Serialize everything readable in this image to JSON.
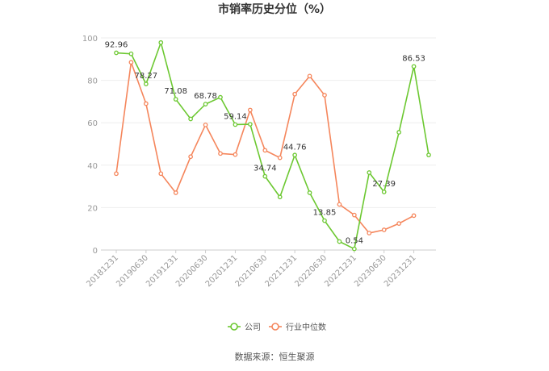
{
  "chart_data": {
    "type": "line",
    "title": "市销率历史分位（%）",
    "xlabel": "",
    "ylabel": "",
    "ylim": [
      0,
      100
    ],
    "yticks": [
      0,
      20,
      40,
      60,
      80,
      100
    ],
    "grid": true,
    "legend_position": "bottom",
    "x_ticks": [
      "20181231",
      "20190630",
      "20191231",
      "20200630",
      "20201231",
      "20210630",
      "20211231",
      "20220630",
      "20221231",
      "20230630",
      "20231231"
    ],
    "series": [
      {
        "name": "公司",
        "color": "#6cc831",
        "values": [
          92.96,
          92.5,
          78.27,
          97.8,
          71.08,
          61.8,
          68.78,
          72.0,
          59.14,
          59.3,
          34.74,
          25.0,
          44.76,
          27.0,
          13.85,
          4.0,
          0.54,
          36.5,
          27.39,
          55.5,
          86.53,
          44.8
        ],
        "labels": [
          {
            "index": 0,
            "text": "92.96"
          },
          {
            "index": 2,
            "text": "78.27"
          },
          {
            "index": 4,
            "text": "71.08"
          },
          {
            "index": 6,
            "text": "68.78"
          },
          {
            "index": 8,
            "text": "59.14"
          },
          {
            "index": 10,
            "text": "34.74"
          },
          {
            "index": 12,
            "text": "44.76"
          },
          {
            "index": 14,
            "text": "13.85"
          },
          {
            "index": 16,
            "text": "0.54"
          },
          {
            "index": 18,
            "text": "27.39"
          },
          {
            "index": 20,
            "text": "86.53"
          }
        ]
      },
      {
        "name": "行业中位数",
        "color": "#f5865c",
        "values": [
          36.0,
          88.5,
          69.0,
          36.0,
          27.0,
          44.0,
          59.0,
          45.5,
          45.0,
          66.0,
          47.0,
          43.5,
          73.5,
          82.0,
          73.0,
          21.5,
          16.5,
          8.0,
          9.5,
          12.5,
          16.2,
          null
        ],
        "labels": []
      }
    ]
  },
  "source": "数据来源：恒生聚源"
}
